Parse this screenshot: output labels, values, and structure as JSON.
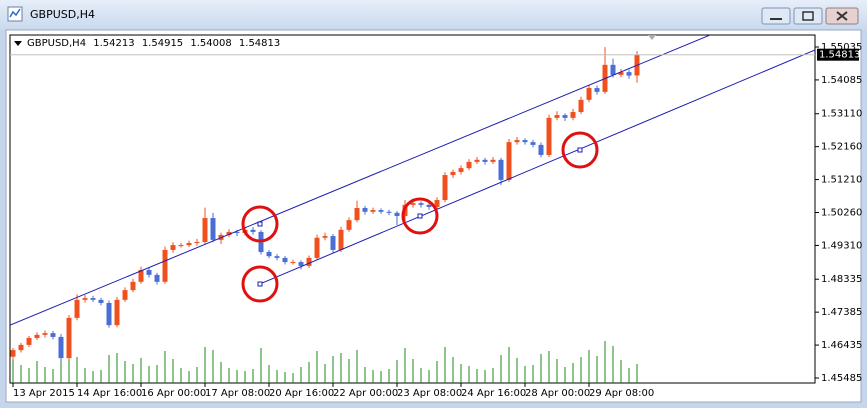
{
  "window": {
    "title": "GBPUSD,H4"
  },
  "chart_data": {
    "type": "candlestick",
    "symbol": "GBPUSD,H4",
    "up_color": "#f0501e",
    "down_color": "#4a6fd4",
    "volume_color": "#1a8a1a",
    "ohlc": [
      [
        1.461,
        1.4635,
        1.46,
        1.4629
      ],
      [
        1.4629,
        1.465,
        1.4622,
        1.4644
      ],
      [
        1.4644,
        1.467,
        1.4638,
        1.4664
      ],
      [
        1.4664,
        1.468,
        1.4658,
        1.4673
      ],
      [
        1.4673,
        1.4686,
        1.4665,
        1.4678
      ],
      [
        1.4678,
        1.4684,
        1.466,
        1.4667
      ],
      [
        1.4667,
        1.4675,
        1.4598,
        1.4606
      ],
      [
        1.4606,
        1.473,
        1.46,
        1.4722
      ],
      [
        1.4722,
        1.479,
        1.4715,
        1.4774
      ],
      [
        1.4774,
        1.4788,
        1.4766,
        1.4779
      ],
      [
        1.4779,
        1.4786,
        1.4768,
        1.4774
      ],
      [
        1.4774,
        1.478,
        1.4758,
        1.4765
      ],
      [
        1.4765,
        1.4772,
        1.4694,
        1.4701
      ],
      [
        1.4701,
        1.4782,
        1.4695,
        1.4774
      ],
      [
        1.4774,
        1.481,
        1.4768,
        1.4802
      ],
      [
        1.4802,
        1.4835,
        1.4796,
        1.4826
      ],
      [
        1.4826,
        1.487,
        1.482,
        1.486
      ],
      [
        1.486,
        1.4866,
        1.4838,
        1.4846
      ],
      [
        1.4846,
        1.4852,
        1.4818,
        1.4826
      ],
      [
        1.4826,
        1.4928,
        1.482,
        1.4918
      ],
      [
        1.4918,
        1.494,
        1.491,
        1.4932
      ],
      [
        1.4932,
        1.4938,
        1.4925,
        1.4932
      ],
      [
        1.4932,
        1.4945,
        1.4926,
        1.4938
      ],
      [
        1.4938,
        1.495,
        1.493,
        1.4941
      ],
      [
        1.4941,
        1.504,
        1.4935,
        1.501
      ],
      [
        1.501,
        1.5025,
        1.494,
        1.4947
      ],
      [
        1.4947,
        1.4968,
        1.4935,
        1.4961
      ],
      [
        1.4961,
        1.4978,
        1.4955,
        1.497
      ],
      [
        1.497,
        1.4976,
        1.4958,
        1.4967
      ],
      [
        1.4967,
        1.4985,
        1.496,
        1.4976
      ],
      [
        1.4976,
        1.4984,
        1.4962,
        1.497
      ],
      [
        1.497,
        1.4975,
        1.4905,
        1.4912
      ],
      [
        1.4912,
        1.4918,
        1.4894,
        1.49
      ],
      [
        1.49,
        1.4906,
        1.4888,
        1.4895
      ],
      [
        1.4895,
        1.49,
        1.4876,
        1.4883
      ],
      [
        1.4883,
        1.489,
        1.4876,
        1.4883
      ],
      [
        1.4883,
        1.4888,
        1.4862,
        1.4872
      ],
      [
        1.4872,
        1.4902,
        1.4866,
        1.4895
      ],
      [
        1.4895,
        1.4962,
        1.4888,
        1.4953
      ],
      [
        1.4953,
        1.4968,
        1.4946,
        1.4958
      ],
      [
        1.4958,
        1.4964,
        1.491,
        1.4918
      ],
      [
        1.4918,
        1.4985,
        1.4912,
        1.4976
      ],
      [
        1.4976,
        1.5012,
        1.497,
        1.5004
      ],
      [
        1.5004,
        1.506,
        1.4998,
        1.5039
      ],
      [
        1.5039,
        1.5045,
        1.502,
        1.5028
      ],
      [
        1.5028,
        1.504,
        1.5022,
        1.5033
      ],
      [
        1.5033,
        1.5038,
        1.5022,
        1.5028
      ],
      [
        1.5028,
        1.5034,
        1.5018,
        1.5025
      ],
      [
        1.5025,
        1.503,
        1.499,
        1.5016
      ],
      [
        1.5016,
        1.5062,
        1.5,
        1.5048
      ],
      [
        1.5048,
        1.5066,
        1.504,
        1.5053
      ],
      [
        1.5053,
        1.5058,
        1.504,
        1.5048
      ],
      [
        1.5048,
        1.5054,
        1.5034,
        1.5042
      ],
      [
        1.5042,
        1.507,
        1.5036,
        1.5062
      ],
      [
        1.5062,
        1.5142,
        1.5056,
        1.5134
      ],
      [
        1.5134,
        1.515,
        1.5126,
        1.5143
      ],
      [
        1.5143,
        1.5162,
        1.5136,
        1.5154
      ],
      [
        1.5154,
        1.518,
        1.5148,
        1.5172
      ],
      [
        1.5172,
        1.5186,
        1.5166,
        1.5178
      ],
      [
        1.5178,
        1.5184,
        1.5164,
        1.5172
      ],
      [
        1.5172,
        1.5186,
        1.5166,
        1.5178
      ],
      [
        1.5178,
        1.5184,
        1.5105,
        1.512
      ],
      [
        1.512,
        1.5238,
        1.5114,
        1.5229
      ],
      [
        1.5229,
        1.5244,
        1.5222,
        1.5235
      ],
      [
        1.5235,
        1.524,
        1.5222,
        1.5229
      ],
      [
        1.5229,
        1.5236,
        1.5214,
        1.5221
      ],
      [
        1.5221,
        1.5228,
        1.5185,
        1.5192
      ],
      [
        1.5192,
        1.5308,
        1.5186,
        1.5299
      ],
      [
        1.5299,
        1.5318,
        1.5292,
        1.5307
      ],
      [
        1.5307,
        1.5312,
        1.529,
        1.5299
      ],
      [
        1.5299,
        1.5325,
        1.5292,
        1.5316
      ],
      [
        1.5316,
        1.536,
        1.531,
        1.5351
      ],
      [
        1.5351,
        1.5395,
        1.5344,
        1.5385
      ],
      [
        1.5385,
        1.5392,
        1.5366,
        1.5374
      ],
      [
        1.5374,
        1.5503,
        1.5368,
        1.5452
      ],
      [
        1.5452,
        1.547,
        1.5415,
        1.5423
      ],
      [
        1.5423,
        1.544,
        1.5416,
        1.5431
      ],
      [
        1.5431,
        1.5438,
        1.5412,
        1.5421
      ],
      [
        1.54213,
        1.54915,
        1.54008,
        1.54813
      ]
    ],
    "volumes": [
      2500,
      1800,
      1500,
      2200,
      1600,
      1400,
      3400,
      3800,
      2600,
      1500,
      1200,
      1300,
      2800,
      3000,
      2200,
      1900,
      2500,
      1700,
      1800,
      3200,
      2400,
      1500,
      1200,
      1600,
      3600,
      3300,
      2100,
      1500,
      1300,
      1200,
      1400,
      3500,
      1800,
      1300,
      1100,
      1000,
      1600,
      2100,
      3200,
      1900,
      2700,
      3000,
      2400,
      3300,
      1600,
      1300,
      1200,
      1400,
      2300,
      3500,
      2400,
      1500,
      1300,
      2200,
      3600,
      2600,
      1900,
      1700,
      1400,
      1300,
      1500,
      2800,
      3600,
      2500,
      1700,
      1800,
      2900,
      3200,
      2400,
      1600,
      2000,
      2600,
      3300,
      2700,
      4200,
      3700,
      2300,
      1500,
      1900
    ],
    "channel_lines": [
      {
        "color": "#1c1cb4",
        "x": [
          -0.375,
          87.75
        ],
        "values": [
          1.4701,
          1.5544
        ]
      },
      {
        "color": "#1c1cb4",
        "x": [
          30.875,
          100.25
        ],
        "values": [
          1.482,
          1.5495
        ]
      }
    ],
    "xlim": [
      -0.375,
      100.25
    ],
    "ylim": [
      1.45341,
      1.55381
    ],
    "xticks": [
      {
        "value": 0,
        "label": "13 Apr 2015"
      },
      {
        "value": 8,
        "label": "14 Apr 16:00"
      },
      {
        "value": 16,
        "label": "16 Apr 00:00"
      },
      {
        "value": 24,
        "label": "17 Apr 08:00"
      },
      {
        "value": 32,
        "label": "20 Apr 16:00"
      },
      {
        "value": 40,
        "label": "22 Apr 00:00"
      },
      {
        "value": 48,
        "label": "23 Apr 08:00"
      },
      {
        "value": 56,
        "label": "24 Apr 16:00"
      },
      {
        "value": 64,
        "label": "28 Apr 00:00"
      },
      {
        "value": 72,
        "label": "29 Apr 08:00"
      }
    ],
    "yticks": [
      1.55035,
      1.54085,
      {
        "value": 1.5311,
        "label": "1.53110"
      },
      {
        "value": 1.5216,
        "label": "1.52160"
      },
      {
        "value": 1.5121,
        "label": "1.51210"
      },
      {
        "value": 1.5026,
        "label": "1.50260"
      },
      {
        "value": 1.4931,
        "label": "1.49310"
      },
      1.48335,
      1.47385,
      1.46435,
      1.45485
    ]
  }
}
